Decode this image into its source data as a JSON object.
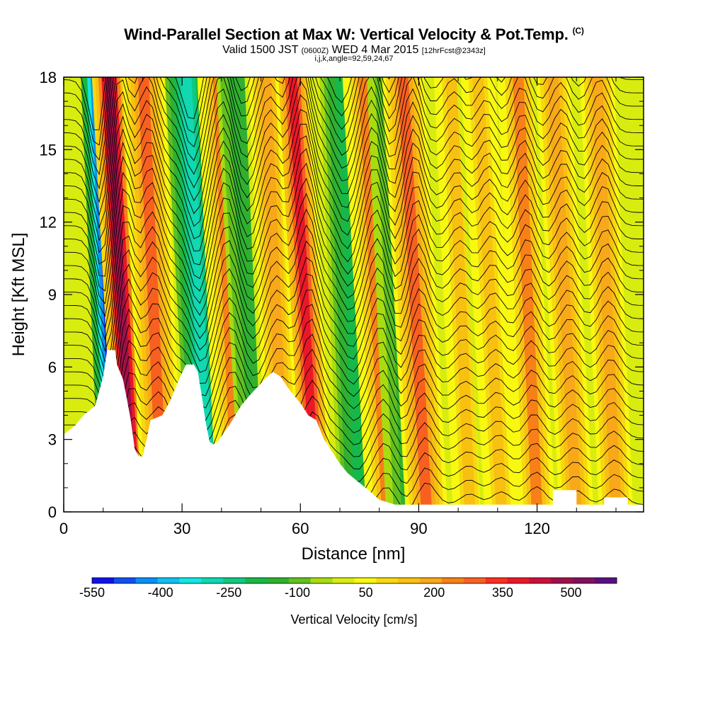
{
  "header": {
    "title": "Wind-Parallel Section at Max W: Vertical Velocity & Pot.Temp.",
    "copyright": "(C)",
    "subtitle_a": "Valid 1500 JST",
    "subtitle_b": "(0600Z)",
    "subtitle_c": "WED 4 Mar 2015",
    "subtitle_d": "[12hrFcst@2343z]",
    "grid_note": "i,j,k,angle=92,59,24,67"
  },
  "chart_data": {
    "type": "heatmap",
    "xlabel": "Distance [nm]",
    "ylabel": "Height [Kft MSL]",
    "xlim": [
      0,
      147
    ],
    "ylim": [
      0,
      18
    ],
    "x_ticks": [
      0,
      30,
      60,
      90,
      120
    ],
    "y_ticks": [
      0,
      3,
      6,
      9,
      12,
      15,
      18
    ],
    "colorbar": {
      "label": "Vertical Velocity [cm/s]",
      "tick_labels": [
        "-550",
        "-400",
        "-250",
        "-100",
        "50",
        "200",
        "350",
        "500"
      ],
      "tick_values": [
        -550,
        -400,
        -250,
        -100,
        50,
        200,
        350,
        500
      ],
      "levels": [
        -550,
        -500,
        -450,
        -400,
        -350,
        -300,
        -250,
        -200,
        -150,
        -100,
        -50,
        0,
        50,
        100,
        150,
        200,
        250,
        300,
        350,
        400,
        450,
        500,
        550,
        600
      ],
      "colors": [
        "#1010e8",
        "#1050f0",
        "#0a8ff5",
        "#10c0f0",
        "#10e8e0",
        "#10d8b0",
        "#10c880",
        "#18b848",
        "#30b030",
        "#60c020",
        "#a8dc10",
        "#d8ec10",
        "#f8f810",
        "#f8d810",
        "#f8c010",
        "#f8a818",
        "#f88018",
        "#f86020",
        "#f83020",
        "#e81828",
        "#c81038",
        "#a01048",
        "#801060",
        "#581080"
      ]
    },
    "velocity_bands": [
      {
        "x": 13.5,
        "w": -560
      },
      {
        "x": 17.5,
        "w": 540
      },
      {
        "x": 25,
        "w": 320
      },
      {
        "x": 37,
        "w": -300
      },
      {
        "x": 44,
        "w": 250
      },
      {
        "x": 50,
        "w": -150
      },
      {
        "x": 56,
        "w": 200
      },
      {
        "x": 64,
        "w": 430
      },
      {
        "x": 75,
        "w": -200
      },
      {
        "x": 82,
        "w": 260
      },
      {
        "x": 87,
        "w": -120
      },
      {
        "x": 92,
        "w": 320
      },
      {
        "x": 103,
        "w": 150
      },
      {
        "x": 111,
        "w": 180
      },
      {
        "x": 120,
        "w": 250
      },
      {
        "x": 130,
        "w": 200
      },
      {
        "x": 140,
        "w": 220
      }
    ],
    "terrain": [
      [
        0,
        3.2
      ],
      [
        3,
        3.6
      ],
      [
        5,
        4.0
      ],
      [
        8,
        4.4
      ],
      [
        10,
        5.6
      ],
      [
        11,
        6.7
      ],
      [
        13,
        6.7
      ],
      [
        13.5,
        6.1
      ],
      [
        15,
        5.5
      ],
      [
        16,
        4.7
      ],
      [
        17,
        3.8
      ],
      [
        18,
        2.6
      ],
      [
        19,
        2.3
      ],
      [
        20,
        2.3
      ],
      [
        21,
        3.0
      ],
      [
        22,
        3.8
      ],
      [
        25,
        4.0
      ],
      [
        27,
        4.6
      ],
      [
        29,
        5.4
      ],
      [
        31,
        6.1
      ],
      [
        33,
        6.1
      ],
      [
        34,
        5.8
      ],
      [
        35,
        4.8
      ],
      [
        36,
        3.7
      ],
      [
        37,
        2.9
      ],
      [
        38,
        2.8
      ],
      [
        39,
        2.9
      ],
      [
        42,
        3.6
      ],
      [
        45,
        4.4
      ],
      [
        47,
        4.8
      ],
      [
        51,
        5.5
      ],
      [
        53,
        5.8
      ],
      [
        55,
        5.6
      ],
      [
        57,
        5.1
      ],
      [
        60,
        4.5
      ],
      [
        62,
        4.0
      ],
      [
        64,
        3.8
      ],
      [
        66,
        3.0
      ],
      [
        68,
        2.5
      ],
      [
        70,
        2.0
      ],
      [
        72,
        1.6
      ],
      [
        75,
        1.2
      ],
      [
        78,
        0.8
      ],
      [
        80,
        0.5
      ],
      [
        84,
        0.3
      ],
      [
        144,
        0.3
      ],
      [
        147,
        0.3
      ]
    ],
    "terrain_dips": [
      [
        127,
        0.9
      ],
      [
        140,
        0.6
      ]
    ]
  }
}
